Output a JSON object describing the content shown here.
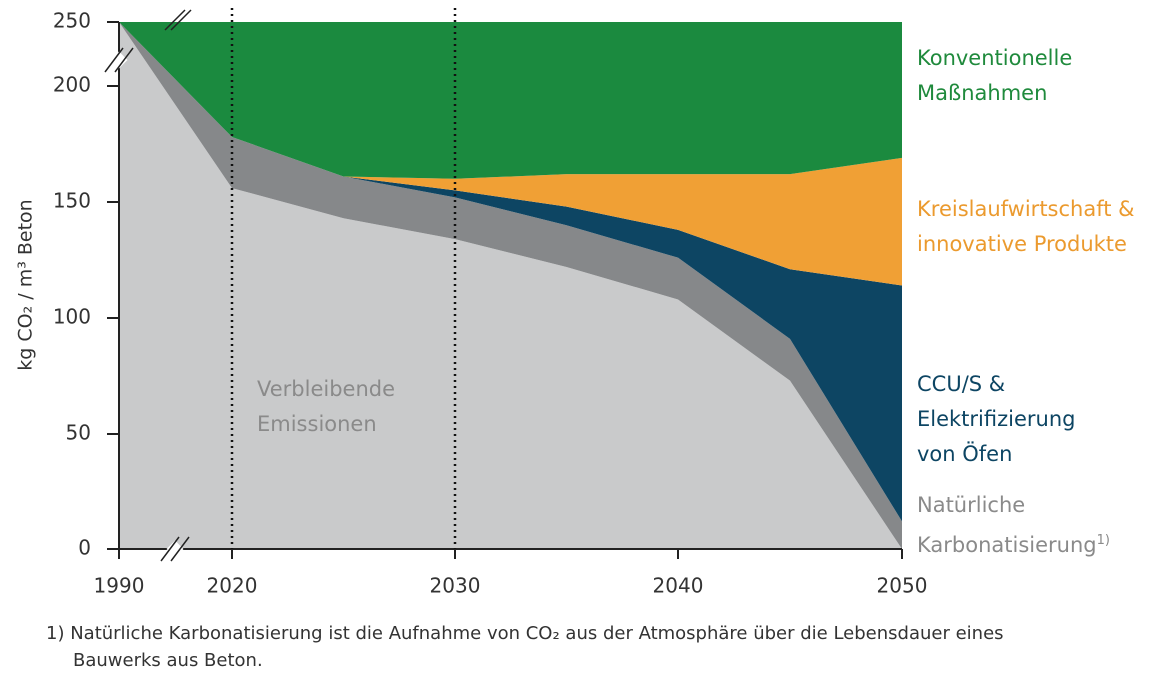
{
  "chart_data": {
    "type": "stacked_area",
    "y_label": "kg CO₂ / m³ Beton",
    "x": [
      1990,
      2020,
      2025,
      2030,
      2035,
      2040,
      2045,
      2050
    ],
    "xlim": [
      1990,
      2050
    ],
    "xticks": [
      1990,
      2020,
      2030,
      2040,
      2050
    ],
    "ylim": [
      0,
      250
    ],
    "yticks": [
      0,
      50,
      100,
      150,
      200,
      250
    ],
    "markers_x": [
      2020,
      2030
    ],
    "series": [
      {
        "name": "Verbleibende\nEmissionen",
        "color": "#c9cacb",
        "label_color": "#8a8a8a",
        "values": [
          250,
          156,
          143,
          134,
          122,
          108,
          73,
          0
        ]
      },
      {
        "name": "Natürliche\nKarbonatisierung",
        "footnote_ref": "1)",
        "color": "#86888a",
        "label_color": "#8a8a8a",
        "values": [
          0,
          22,
          18,
          18,
          18,
          18,
          18,
          12
        ]
      },
      {
        "name": "CCU/S &\nElektrifizierung\nvon Öfen",
        "color": "#0d4563",
        "label_color": "#0d4563",
        "values": [
          0,
          0,
          0,
          3,
          8,
          12,
          30,
          102
        ]
      },
      {
        "name": "Kreislaufwirtschaft &\ninnovative Produkte",
        "color": "#f0a035",
        "label_color": "#eb9a2e",
        "values": [
          0,
          0,
          0,
          5,
          14,
          24,
          41,
          55
        ]
      },
      {
        "name": "Konventionelle\nMaßnahmen",
        "color": "#1b8a3f",
        "label_color": "#1f8a3c",
        "values": [
          0,
          72,
          89,
          90,
          88,
          88,
          88,
          81
        ]
      }
    ],
    "footnote": "1) Natürliche Karbonatisierung ist die Aufnahme von CO₂ aus der Atmosphäre über die Lebensdauer eines Bauwerks aus Beton."
  }
}
